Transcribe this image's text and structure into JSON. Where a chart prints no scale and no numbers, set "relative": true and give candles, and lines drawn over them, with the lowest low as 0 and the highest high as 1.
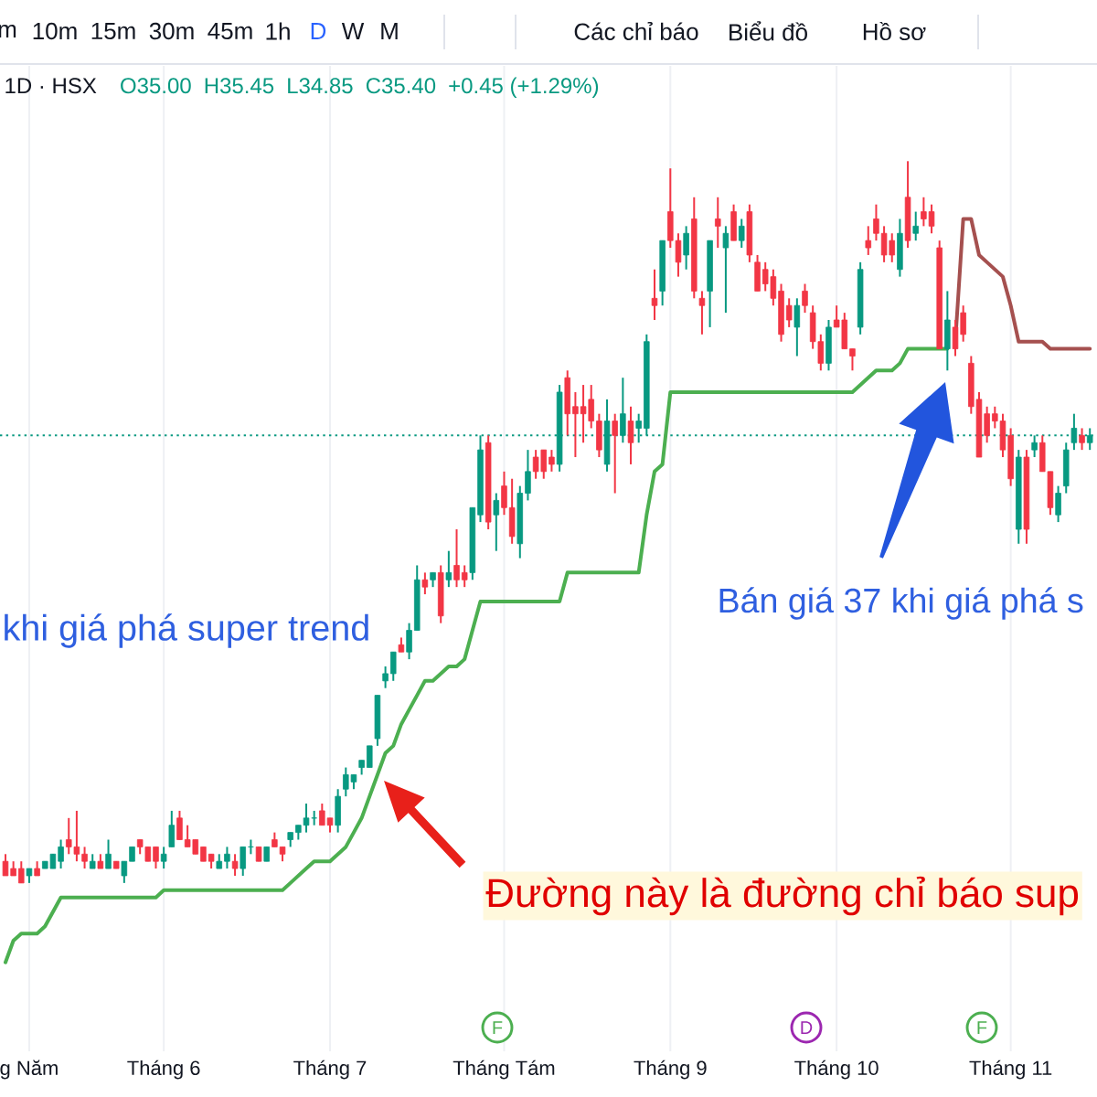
{
  "chart_data": {
    "type": "candlestick",
    "relative": true,
    "grid": "x",
    "categories": [
      null,
      null,
      null,
      "g Năm",
      null,
      null,
      null,
      null,
      null,
      null,
      null,
      null,
      null,
      null,
      null,
      null,
      null,
      null,
      null,
      null,
      "Tháng 6",
      null,
      null,
      null,
      null,
      null,
      null,
      null,
      null,
      null,
      null,
      null,
      null,
      null,
      null,
      null,
      null,
      null,
      null,
      null,
      null,
      "Tháng 7",
      null,
      null,
      null,
      null,
      null,
      null,
      null,
      null,
      null,
      null,
      null,
      null,
      null,
      null,
      null,
      null,
      null,
      null,
      null,
      null,
      null,
      "Tháng Tám",
      null,
      null,
      null,
      null,
      null,
      null,
      null,
      null,
      null,
      null,
      null,
      null,
      null,
      null,
      null,
      null,
      null,
      null,
      null,
      null,
      "Tháng 9",
      null,
      null,
      null,
      null,
      null,
      null,
      null,
      null,
      null,
      null,
      null,
      null,
      null,
      null,
      null,
      null,
      null,
      null,
      null,
      null,
      "Tháng 10",
      null,
      null,
      null,
      null,
      null,
      null,
      null,
      null,
      null,
      null,
      null,
      null,
      null,
      null,
      null,
      null,
      null,
      null,
      null,
      null,
      null,
      "Tháng 11",
      null,
      null,
      null,
      null,
      null,
      null,
      null,
      null,
      null,
      null
    ],
    "ohlc": [
      [
        0.03,
        0.04,
        0.01,
        0.01
      ],
      [
        0.02,
        0.03,
        0.01,
        0.01
      ],
      [
        0.02,
        0.03,
        0,
        0
      ],
      [
        0.01,
        0.02,
        0,
        0.02
      ],
      [
        0.02,
        0.03,
        0.01,
        0.01
      ],
      [
        0.02,
        0.03,
        0.02,
        0.03
      ],
      [
        0.02,
        0.04,
        0.02,
        0.04
      ],
      [
        0.03,
        0.06,
        0.02,
        0.05
      ],
      [
        0.06,
        0.09,
        0.04,
        0.05
      ],
      [
        0.05,
        0.1,
        0.03,
        0.04
      ],
      [
        0.04,
        0.05,
        0.02,
        0.03
      ],
      [
        0.02,
        0.04,
        0.02,
        0.03
      ],
      [
        0.03,
        0.04,
        0.02,
        0.02
      ],
      [
        0.02,
        0.06,
        0.02,
        0.04
      ],
      [
        0.03,
        0.03,
        0.02,
        0.02
      ],
      [
        0.01,
        0.03,
        0,
        0.03
      ],
      [
        0.03,
        0.05,
        0.03,
        0.05
      ],
      [
        0.06,
        0.06,
        0.04,
        0.05
      ],
      [
        0.05,
        0.05,
        0.03,
        0.03
      ],
      [
        0.05,
        0.05,
        0.02,
        0.03
      ],
      [
        0.03,
        0.05,
        0.02,
        0.04
      ],
      [
        0.05,
        0.1,
        0.05,
        0.08
      ],
      [
        0.09,
        0.1,
        0.06,
        0.06
      ],
      [
        0.06,
        0.08,
        0.05,
        0.05
      ],
      [
        0.06,
        0.06,
        0.04,
        0.04
      ],
      [
        0.05,
        0.05,
        0.03,
        0.03
      ],
      [
        0.04,
        0.04,
        0.02,
        0.03
      ],
      [
        0.02,
        0.04,
        0.02,
        0.03
      ],
      [
        0.03,
        0.05,
        0.02,
        0.04
      ],
      [
        0.03,
        0.04,
        0.01,
        0.02
      ],
      [
        0.02,
        0.05,
        0.01,
        0.05
      ],
      [
        0.05,
        0.06,
        0.04,
        0.05
      ],
      [
        0.05,
        0.05,
        0.03,
        0.03
      ],
      [
        0.03,
        0.05,
        0.03,
        0.05
      ],
      [
        0.06,
        0.07,
        0.05,
        0.05
      ],
      [
        0.05,
        0.05,
        0.03,
        0.04
      ],
      [
        0.06,
        0.07,
        0.05,
        0.07
      ],
      [
        0.07,
        0.08,
        0.06,
        0.08
      ],
      [
        0.08,
        0.11,
        0.07,
        0.09
      ],
      [
        0.09,
        0.1,
        0.08,
        0.09
      ],
      [
        0.1,
        0.11,
        0.08,
        0.08
      ],
      [
        0.09,
        0.09,
        0.07,
        0.08
      ],
      [
        0.08,
        0.13,
        0.07,
        0.12
      ],
      [
        0.13,
        0.16,
        0.12,
        0.15
      ],
      [
        0.14,
        0.15,
        0.13,
        0.15
      ],
      [
        0.16,
        0.17,
        0.15,
        0.17
      ],
      [
        0.16,
        0.19,
        0.16,
        0.19
      ],
      [
        0.2,
        0.26,
        0.19,
        0.26
      ],
      [
        0.28,
        0.3,
        0.27,
        0.29
      ],
      [
        0.29,
        0.32,
        0.28,
        0.32
      ],
      [
        0.33,
        0.34,
        0.32,
        0.32
      ],
      [
        0.32,
        0.36,
        0.31,
        0.35
      ],
      [
        0.35,
        0.44,
        0.35,
        0.42
      ],
      [
        0.42,
        0.43,
        0.4,
        0.41
      ],
      [
        0.42,
        0.43,
        0.41,
        0.43
      ],
      [
        0.43,
        0.44,
        0.36,
        0.37
      ],
      [
        0.42,
        0.46,
        0.41,
        0.43
      ],
      [
        0.44,
        0.49,
        0.41,
        0.42
      ],
      [
        0.43,
        0.44,
        0.41,
        0.42
      ],
      [
        0.43,
        0.52,
        0.42,
        0.52
      ],
      [
        0.51,
        0.62,
        0.5,
        0.6
      ],
      [
        0.61,
        0.62,
        0.49,
        0.5
      ],
      [
        0.51,
        0.54,
        0.46,
        0.53
      ],
      [
        0.55,
        0.57,
        0.51,
        0.52
      ],
      [
        0.52,
        0.56,
        0.47,
        0.48
      ],
      [
        0.47,
        0.55,
        0.45,
        0.54
      ],
      [
        0.54,
        0.6,
        0.53,
        0.57
      ],
      [
        0.59,
        0.6,
        0.56,
        0.57
      ],
      [
        0.6,
        0.6,
        0.56,
        0.57
      ],
      [
        0.59,
        0.6,
        0.57,
        0.58
      ],
      [
        0.58,
        0.69,
        0.57,
        0.68
      ],
      [
        0.7,
        0.71,
        0.62,
        0.65
      ],
      [
        0.66,
        0.68,
        0.59,
        0.65
      ],
      [
        0.66,
        0.69,
        0.61,
        0.65
      ],
      [
        0.67,
        0.69,
        0.63,
        0.64
      ],
      [
        0.64,
        0.65,
        0.59,
        0.6
      ],
      [
        0.58,
        0.67,
        0.57,
        0.64
      ],
      [
        0.64,
        0.65,
        0.54,
        0.62
      ],
      [
        0.62,
        0.7,
        0.61,
        0.65
      ],
      [
        0.64,
        0.66,
        0.58,
        0.61
      ],
      [
        0.63,
        0.65,
        0.61,
        0.64
      ],
      [
        0.63,
        0.76,
        0.62,
        0.75
      ],
      [
        0.81,
        0.85,
        0.78,
        0.8
      ],
      [
        0.82,
        0.89,
        0.8,
        0.89
      ],
      [
        0.93,
        0.99,
        0.88,
        0.89
      ],
      [
        0.89,
        0.9,
        0.84,
        0.86
      ],
      [
        0.87,
        0.91,
        0.85,
        0.9
      ],
      [
        0.92,
        0.95,
        0.81,
        0.82
      ],
      [
        0.81,
        0.82,
        0.76,
        0.8
      ],
      [
        0.82,
        0.89,
        0.77,
        0.89
      ],
      [
        0.92,
        0.95,
        0.88,
        0.91
      ],
      [
        0.88,
        0.91,
        0.79,
        0.9
      ],
      [
        0.93,
        0.94,
        0.89,
        0.89
      ],
      [
        0.89,
        0.92,
        0.88,
        0.91
      ],
      [
        0.93,
        0.94,
        0.86,
        0.87
      ],
      [
        0.86,
        0.87,
        0.82,
        0.82
      ],
      [
        0.85,
        0.86,
        0.82,
        0.83
      ],
      [
        0.84,
        0.85,
        0.8,
        0.81
      ],
      [
        0.82,
        0.83,
        0.75,
        0.76
      ],
      [
        0.8,
        0.81,
        0.77,
        0.78
      ],
      [
        0.77,
        0.81,
        0.73,
        0.8
      ],
      [
        0.82,
        0.83,
        0.79,
        0.8
      ],
      [
        0.79,
        0.8,
        0.74,
        0.75
      ],
      [
        0.75,
        0.76,
        0.71,
        0.72
      ],
      [
        0.72,
        0.78,
        0.71,
        0.77
      ],
      [
        0.78,
        0.8,
        0.77,
        0.77
      ],
      [
        0.78,
        0.79,
        0.74,
        0.74
      ],
      [
        0.74,
        0.74,
        0.71,
        0.73
      ],
      [
        0.77,
        0.86,
        0.76,
        0.85
      ],
      [
        0.89,
        0.91,
        0.87,
        0.88
      ],
      [
        0.92,
        0.94,
        0.89,
        0.9
      ],
      [
        0.9,
        0.91,
        0.86,
        0.87
      ],
      [
        0.89,
        0.9,
        0.86,
        0.87
      ],
      [
        0.85,
        0.92,
        0.84,
        0.9
      ],
      [
        0.95,
        1,
        0.88,
        0.89
      ],
      [
        0.9,
        0.93,
        0.89,
        0.91
      ],
      [
        0.93,
        0.95,
        0.91,
        0.92
      ],
      [
        0.93,
        0.94,
        0.9,
        0.91
      ],
      [
        0.88,
        0.89,
        0.74,
        0.74
      ],
      [
        0.74,
        0.82,
        0.71,
        0.78
      ],
      [
        0.77,
        0.78,
        0.73,
        0.74
      ],
      [
        0.79,
        0.8,
        0.75,
        0.76
      ],
      [
        0.72,
        0.73,
        0.65,
        0.66
      ],
      [
        0.67,
        0.68,
        0.59,
        0.59
      ],
      [
        0.65,
        0.66,
        0.61,
        0.62
      ],
      [
        0.65,
        0.66,
        0.63,
        0.64
      ],
      [
        0.64,
        0.65,
        0.59,
        0.6
      ],
      [
        0.62,
        0.63,
        0.55,
        0.56
      ],
      [
        0.49,
        0.6,
        0.47,
        0.59
      ],
      [
        0.59,
        0.6,
        0.47,
        0.49
      ],
      [
        0.6,
        0.62,
        0.59,
        0.61
      ],
      [
        0.61,
        0.62,
        0.57,
        0.57
      ],
      [
        0.57,
        0.57,
        0.51,
        0.52
      ],
      [
        0.51,
        0.55,
        0.5,
        0.54
      ],
      [
        0.55,
        0.61,
        0.54,
        0.6
      ],
      [
        0.61,
        0.65,
        0.6,
        0.63
      ],
      [
        0.62,
        0.63,
        0.6,
        0.61
      ],
      [
        0.61,
        0.63,
        0.6,
        0.62
      ]
    ],
    "colors": [
      "#f23645",
      "#f23645",
      "#f23645",
      "#089981",
      "#f23645",
      "#089981",
      "#089981",
      "#089981",
      "#f23645",
      "#f23645",
      "#f23645",
      "#089981",
      "#f23645",
      "#089981",
      "#f23645",
      "#089981",
      "#089981",
      "#f23645",
      "#f23645",
      "#f23645",
      "#089981",
      "#089981",
      "#f23645",
      "#f23645",
      "#f23645",
      "#f23645",
      "#f23645",
      "#089981",
      "#089981",
      "#f23645",
      "#089981",
      "#089981",
      "#f23645",
      "#089981",
      "#f23645",
      "#f23645",
      "#089981",
      "#089981",
      "#089981",
      "#089981",
      "#f23645",
      "#f23645",
      "#089981",
      "#089981",
      "#089981",
      "#089981",
      "#089981",
      "#089981",
      "#089981",
      "#089981",
      "#f23645",
      "#089981",
      "#089981",
      "#f23645",
      "#089981",
      "#f23645",
      "#089981",
      "#f23645",
      "#f23645",
      "#089981",
      "#089981",
      "#f23645",
      "#089981",
      "#f23645",
      "#f23645",
      "#089981",
      "#089981",
      "#f23645",
      "#f23645",
      "#f23645",
      "#089981",
      "#f23645",
      "#f23645",
      "#f23645",
      "#f23645",
      "#f23645",
      "#089981",
      "#f23645",
      "#089981",
      "#f23645",
      "#089981",
      "#089981",
      "#f23645",
      "#089981",
      "#f23645",
      "#f23645",
      "#089981",
      "#f23645",
      "#f23645",
      "#089981",
      "#f23645",
      "#089981",
      "#f23645",
      "#089981",
      "#f23645",
      "#f23645",
      "#f23645",
      "#f23645",
      "#f23645",
      "#f23645",
      "#089981",
      "#f23645",
      "#f23645",
      "#f23645",
      "#089981",
      "#f23645",
      "#f23645",
      "#f23645",
      "#089981",
      "#f23645",
      "#f23645",
      "#f23645",
      "#f23645",
      "#089981",
      "#f23645",
      "#089981",
      "#f23645",
      "#f23645",
      "#f23645",
      "#089981",
      "#f23645",
      "#f23645",
      "#f23645",
      "#f23645",
      "#f23645",
      "#f23645",
      "#f23645",
      "#f23645",
      "#089981",
      "#f23645",
      "#089981",
      "#f23645",
      "#f23645",
      "#089981",
      "#089981",
      "#089981",
      "#f23645",
      "#089981"
    ],
    "series": [
      {
        "type": "line",
        "color": "#4caf50",
        "values": [
          -0.11,
          -0.08,
          -0.07,
          -0.07,
          -0.07,
          -0.06,
          -0.04,
          -0.02,
          -0.02,
          -0.02,
          -0.02,
          -0.02,
          -0.02,
          -0.02,
          -0.02,
          -0.02,
          -0.02,
          -0.02,
          -0.02,
          -0.02,
          -0.01,
          -0.01,
          -0.01,
          -0.01,
          -0.01,
          -0.01,
          -0.01,
          -0.01,
          -0.01,
          -0.01,
          -0.01,
          -0.01,
          -0.01,
          -0.01,
          -0.01,
          -0.01,
          0,
          0.01,
          0.02,
          0.03,
          0.03,
          0.03,
          0.04,
          0.05,
          0.07,
          0.09,
          0.12,
          0.15,
          0.18,
          0.19,
          0.22,
          0.24,
          0.26,
          0.28,
          0.28,
          0.29,
          0.3,
          0.3,
          0.31,
          0.35,
          0.39,
          0.39,
          0.39,
          0.39,
          0.39,
          0.39,
          0.39,
          0.39,
          0.39,
          0.39,
          0.39,
          0.43,
          0.43,
          0.43,
          0.43,
          0.43,
          0.43,
          0.43,
          0.43,
          0.43,
          0.43,
          0.51,
          0.57,
          0.58,
          0.68,
          0.68,
          0.68,
          0.68,
          0.68,
          0.68,
          0.68,
          0.68,
          0.68,
          0.68,
          0.68,
          0.68,
          0.68,
          0.68,
          0.68,
          0.68,
          0.68,
          0.68,
          0.68,
          0.68,
          0.68,
          0.68,
          0.68,
          0.68,
          0.69,
          0.7,
          0.71,
          0.71,
          0.71,
          0.72,
          0.74,
          0.74,
          0.74,
          0.74,
          0.74,
          0.74,
          null,
          null,
          null,
          null,
          null,
          null,
          null,
          null,
          null,
          null,
          null,
          null,
          null,
          null,
          null,
          null,
          null,
          null
        ]
      },
      {
        "type": "line",
        "color": "#a5504f",
        "values": [
          null,
          null,
          null,
          null,
          null,
          null,
          null,
          null,
          null,
          null,
          null,
          null,
          null,
          null,
          null,
          null,
          null,
          null,
          null,
          null,
          null,
          null,
          null,
          null,
          null,
          null,
          null,
          null,
          null,
          null,
          null,
          null,
          null,
          null,
          null,
          null,
          null,
          null,
          null,
          null,
          null,
          null,
          null,
          null,
          null,
          null,
          null,
          null,
          null,
          null,
          null,
          null,
          null,
          null,
          null,
          null,
          null,
          null,
          null,
          null,
          null,
          null,
          null,
          null,
          null,
          null,
          null,
          null,
          null,
          null,
          null,
          null,
          null,
          null,
          null,
          null,
          null,
          null,
          null,
          null,
          null,
          null,
          null,
          null,
          null,
          null,
          null,
          null,
          null,
          null,
          null,
          null,
          null,
          null,
          null,
          null,
          null,
          null,
          null,
          null,
          null,
          null,
          null,
          null,
          null,
          null,
          null,
          null,
          null,
          null,
          null,
          null,
          null,
          null,
          null,
          null,
          null,
          null,
          null,
          null,
          0.75,
          0.92,
          0.92,
          0.87,
          0.86,
          0.85,
          0.84,
          0.8,
          0.75,
          0.75,
          0.75,
          0.75,
          0.74,
          0.74,
          0.74,
          0.74,
          0.74,
          0.74
        ]
      }
    ],
    "ref_lines": [
      {
        "axis": "y",
        "value": 0.62,
        "color": "#089981",
        "line_style": "dotted"
      }
    ],
    "annotations": [
      "1D · HSX",
      "O35.00",
      "H35.45",
      "L34.85",
      "C35.40",
      "+0.45 (+1.29%)",
      "khi giá phá super trend",
      "Bán giá 37 khi giá phá s",
      "Đường này là đường chỉ báo sup",
      "F",
      "D",
      "F",
      "m",
      "10m",
      "15m",
      "30m",
      "45m",
      "1h",
      "D",
      "W",
      "M",
      "Các chỉ báo",
      "Biểu đồ",
      "Hồ sơ"
    ]
  }
}
